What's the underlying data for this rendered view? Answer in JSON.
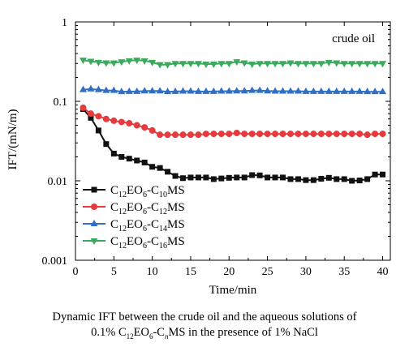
{
  "chart_data": {
    "type": "line",
    "xlabel": "Time/min",
    "ylabel": "IFT/(mN/m)",
    "xlim": [
      0,
      41
    ],
    "ylim": [
      0.001,
      1
    ],
    "y_scale": "log",
    "x_ticks": [
      0,
      5,
      10,
      15,
      20,
      25,
      30,
      35,
      40
    ],
    "y_ticks": [
      0.001,
      0.01,
      0.1,
      1
    ],
    "y_tick_labels": [
      "0.001",
      "0.01",
      "0.1",
      "1"
    ],
    "annotation": "crude oil",
    "legend_position": "bottom-left",
    "series": [
      {
        "name": "C12EO6-C10MS",
        "color": "#111111",
        "marker": "square",
        "x": [
          1,
          2,
          3,
          4,
          5,
          6,
          7,
          8,
          9,
          10,
          11,
          12,
          13,
          14,
          15,
          16,
          17,
          18,
          19,
          20,
          21,
          22,
          23,
          24,
          25,
          26,
          27,
          28,
          29,
          30,
          31,
          32,
          33,
          34,
          35,
          36,
          37,
          38,
          39,
          40
        ],
        "values": [
          0.08,
          0.062,
          0.043,
          0.029,
          0.022,
          0.02,
          0.019,
          0.018,
          0.017,
          0.015,
          0.0145,
          0.013,
          0.0115,
          0.0108,
          0.011,
          0.011,
          0.011,
          0.0105,
          0.0107,
          0.0109,
          0.011,
          0.011,
          0.0118,
          0.0117,
          0.011,
          0.011,
          0.011,
          0.0105,
          0.0105,
          0.0102,
          0.0102,
          0.0106,
          0.0109,
          0.0105,
          0.0105,
          0.01,
          0.0101,
          0.0105,
          0.012,
          0.012
        ]
      },
      {
        "name": "C12EO6-C12MS",
        "color": "#e8393c",
        "marker": "circle",
        "x": [
          1,
          2,
          3,
          4,
          5,
          6,
          7,
          8,
          9,
          10,
          11,
          12,
          13,
          14,
          15,
          16,
          17,
          18,
          19,
          20,
          21,
          22,
          23,
          24,
          25,
          26,
          27,
          28,
          29,
          30,
          31,
          32,
          33,
          34,
          35,
          36,
          37,
          38,
          39,
          40
        ],
        "values": [
          0.083,
          0.07,
          0.065,
          0.06,
          0.057,
          0.055,
          0.053,
          0.05,
          0.047,
          0.043,
          0.038,
          0.038,
          0.038,
          0.038,
          0.038,
          0.038,
          0.039,
          0.039,
          0.039,
          0.039,
          0.04,
          0.039,
          0.039,
          0.039,
          0.039,
          0.039,
          0.039,
          0.039,
          0.039,
          0.039,
          0.039,
          0.039,
          0.039,
          0.039,
          0.039,
          0.039,
          0.039,
          0.038,
          0.039,
          0.039
        ]
      },
      {
        "name": "C12EO6-C14MS",
        "color": "#2f6fc4",
        "marker": "triangle-up",
        "x": [
          1,
          2,
          3,
          4,
          5,
          6,
          7,
          8,
          9,
          10,
          11,
          12,
          13,
          14,
          15,
          16,
          17,
          18,
          19,
          20,
          21,
          22,
          23,
          24,
          25,
          26,
          27,
          28,
          29,
          30,
          31,
          32,
          33,
          34,
          35,
          36,
          37,
          38,
          39,
          40
        ],
        "values": [
          0.14,
          0.143,
          0.14,
          0.137,
          0.137,
          0.132,
          0.133,
          0.133,
          0.135,
          0.135,
          0.135,
          0.132,
          0.133,
          0.134,
          0.134,
          0.133,
          0.133,
          0.133,
          0.134,
          0.134,
          0.135,
          0.135,
          0.137,
          0.137,
          0.135,
          0.134,
          0.134,
          0.134,
          0.134,
          0.133,
          0.133,
          0.133,
          0.133,
          0.133,
          0.133,
          0.133,
          0.133,
          0.132,
          0.132,
          0.132
        ]
      },
      {
        "name": "C12EO6-C16MS",
        "color": "#3aaa5c",
        "marker": "triangle-down",
        "x": [
          1,
          2,
          3,
          4,
          5,
          6,
          7,
          8,
          9,
          10,
          11,
          12,
          13,
          14,
          15,
          16,
          17,
          18,
          19,
          20,
          21,
          22,
          23,
          24,
          25,
          26,
          27,
          28,
          29,
          30,
          31,
          32,
          33,
          34,
          35,
          36,
          37,
          38,
          39,
          40
        ],
        "values": [
          0.33,
          0.32,
          0.31,
          0.305,
          0.305,
          0.315,
          0.325,
          0.33,
          0.325,
          0.31,
          0.29,
          0.29,
          0.3,
          0.3,
          0.3,
          0.3,
          0.295,
          0.295,
          0.3,
          0.3,
          0.315,
          0.305,
          0.295,
          0.3,
          0.3,
          0.3,
          0.3,
          0.305,
          0.3,
          0.3,
          0.3,
          0.3,
          0.31,
          0.305,
          0.3,
          0.3,
          0.3,
          0.3,
          0.3,
          0.3
        ]
      }
    ]
  },
  "caption": {
    "line1": "Dynamic IFT between the crude oil and the aqueous solutions of",
    "line2_prefix": "0.1% C",
    "line2_sub1": "12",
    "line2_mid1": "EO",
    "line2_sub2": "6",
    "line2_mid2": "-C",
    "line2_sub3": "n",
    "line2_suffix": "MS in the presence of 1% NaCl"
  }
}
